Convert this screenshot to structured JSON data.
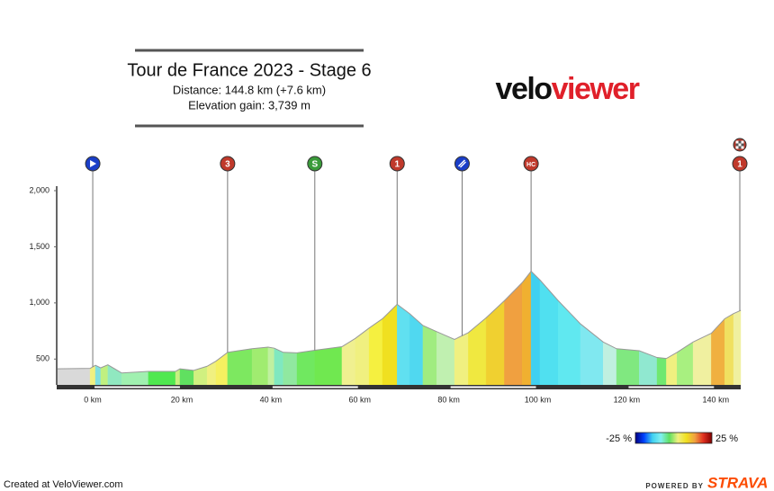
{
  "chart_data": {
    "type": "elevation",
    "title": "Tour de France 2023 - Stage 6",
    "subtitle": [
      "Distance: 144.8 km (+7.6 km)",
      "Elevation gain: 3,739 m"
    ],
    "logo": [
      "velo",
      "viewer"
    ],
    "x": [
      -8.1,
      -0.6,
      0.6,
      1.8,
      3.4,
      6.5,
      12.5,
      18.6,
      19.6,
      22.7,
      25.7,
      27.7,
      30.3,
      35.8,
      39.4,
      40.8,
      42.8,
      45.9,
      49.9,
      56,
      59,
      62.1,
      65.1,
      68.4,
      71.2,
      74.2,
      77.3,
      81.3,
      84.4,
      88.4,
      92.5,
      96.5,
      98.5,
      100.5,
      104.6,
      109.6,
      114.7,
      117.7,
      122.8,
      126.8,
      128.9,
      131.3,
      134.9,
      139,
      142,
      144,
      145.6
    ],
    "values": [
      413,
      417,
      445,
      422,
      449,
      376,
      390,
      390,
      413,
      399,
      436,
      482,
      560,
      592,
      606,
      597,
      560,
      555,
      578,
      610,
      684,
      776,
      859,
      988,
      905,
      799,
      744,
      675,
      735,
      868,
      1020,
      1181,
      1282,
      1204,
      1020,
      813,
      652,
      592,
      574,
      514,
      505,
      560,
      652,
      730,
      859,
      905,
      933
    ],
    "segment_colors": [
      "#d9d9d9",
      "#f0f080",
      "#80e0e0",
      "#c0f080",
      "#90e8c0",
      "#a0f0b0",
      "#50e850",
      "#c8f080",
      "#60e060",
      "#d0f080",
      "#f0f080",
      "#f5f060",
      "#7de860",
      "#a0ec70",
      "#c0f0a0",
      "#80e8c0",
      "#90e8a0",
      "#70e860",
      "#70e850",
      "#f0f090",
      "#f0f080",
      "#f5f040",
      "#f0e020",
      "#60e0f0",
      "#50d8f0",
      "#a0ec80",
      "#c0f0b0",
      "#f0f080",
      "#f0e840",
      "#f0d030",
      "#f0a040",
      "#f0b030",
      "#40d0f0",
      "#50e0f0",
      "#60e8f0",
      "#80e8f0",
      "#c0f0e0",
      "#80e880",
      "#90e8d0",
      "#70e870",
      "#f0f080",
      "#a8f080",
      "#f0f0a0",
      "#f0b040",
      "#f0e060",
      "#f0f0a0"
    ],
    "xlim": [
      -8.1,
      145.6
    ],
    "ylim": [
      270,
      2040
    ],
    "xticks": [
      {
        "value": 0,
        "label": "0 km"
      },
      {
        "value": 20,
        "label": "20 km"
      },
      {
        "value": 40,
        "label": "40 km"
      },
      {
        "value": 60,
        "label": "60 km"
      },
      {
        "value": 80,
        "label": "80 km"
      },
      {
        "value": 100,
        "label": "100 km"
      },
      {
        "value": 120,
        "label": "120 km"
      },
      {
        "value": 140,
        "label": "140 km"
      }
    ],
    "yticks": [
      500,
      {
        "value": 1000,
        "label": "1,000"
      },
      {
        "value": 1500,
        "label": "1,500"
      },
      {
        "value": 2000,
        "label": "2,000"
      }
    ],
    "markers": [
      {
        "x": 0,
        "icon": "start",
        "color": "#1a3ec8"
      },
      {
        "x": 30.3,
        "icon": "cat",
        "label": "3",
        "color": "#c0392b"
      },
      {
        "x": 49.9,
        "icon": "cat",
        "label": "S",
        "color": "#3a9b3a"
      },
      {
        "x": 68.4,
        "icon": "cat",
        "label": "1",
        "color": "#c0392b"
      },
      {
        "x": 83,
        "icon": "feed",
        "color": "#1a3ec8"
      },
      {
        "x": 98.5,
        "icon": "cat",
        "label": "HC",
        "color": "#c0392b"
      },
      {
        "x": 145.4,
        "icon": "finish",
        "label": "1",
        "color": "#c0392b"
      }
    ],
    "legend": {
      "min_label": "-25 %",
      "max_label": "25 %",
      "colors": [
        "#000080",
        "#0040ff",
        "#40d0f0",
        "#80f0f0",
        "#60e060",
        "#f0f080",
        "#f0e020",
        "#f0a040",
        "#e03020",
        "#800000"
      ]
    },
    "footer": {
      "left": "Created at VeloViewer.com",
      "powered": "POWERED BY",
      "brand": "STRAVA"
    }
  }
}
